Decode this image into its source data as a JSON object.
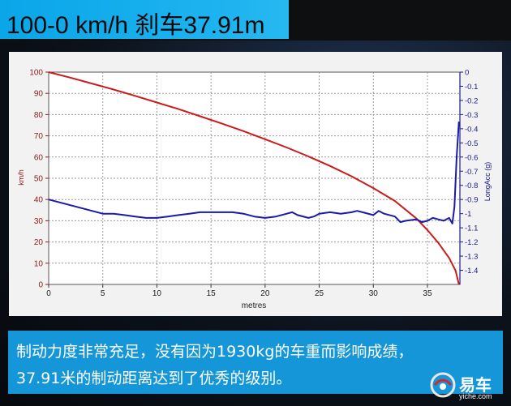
{
  "header": {
    "title": "100-0 km/h 刹车37.91m"
  },
  "caption": {
    "line1": "制动力度非常充足，没有因为1930kg的车重而影响成绩，",
    "line2": "37.91米的制动距离达到了优秀的级别。"
  },
  "logo": {
    "name": "易车",
    "url": "yiche.com"
  },
  "colors": {
    "speed_series": "#cc1a1a",
    "accel_series": "#1a1aa8",
    "header_accent": "#19aeee",
    "caption_bg": "#1596d8"
  },
  "chart_data": {
    "type": "line",
    "title": "",
    "xlabel": "metres",
    "ylabel": "km/h",
    "ylabel_right": "LongAcc (g)",
    "xlim": [
      0,
      38
    ],
    "ylim": [
      0,
      100
    ],
    "ylim_right": [
      -1.5,
      0
    ],
    "x_ticks": [
      0,
      5,
      10,
      15,
      20,
      25,
      30,
      35
    ],
    "y_ticks": [
      0,
      10,
      20,
      30,
      40,
      50,
      60,
      70,
      80,
      90,
      100
    ],
    "y_right_ticks": [
      0,
      -0.1,
      -0.2,
      -0.3,
      -0.4,
      -0.5,
      -0.6,
      -0.7,
      -0.8,
      -0.9,
      -1,
      -1.1,
      -1.2,
      -1.3,
      -1.4
    ],
    "grid": true,
    "series": [
      {
        "axis": "left",
        "x": [
          0,
          2,
          4,
          6,
          8,
          10,
          12,
          14,
          16,
          18,
          20,
          22,
          24,
          26,
          28,
          30,
          32,
          34,
          35,
          36,
          37,
          37.6,
          37.91
        ],
        "y": [
          100,
          97.4,
          94.6,
          91.8,
          88.8,
          85.7,
          82.6,
          79.2,
          75.8,
          72.2,
          68.4,
          64.5,
          60.3,
          55.8,
          50.9,
          45.4,
          39.3,
          31.0,
          25.6,
          19.6,
          12.5,
          6.5,
          0
        ]
      },
      {
        "axis": "right",
        "x": [
          0,
          1,
          2,
          3,
          4,
          5,
          6,
          7,
          8,
          9,
          10,
          11,
          12,
          13,
          14,
          15,
          16,
          17,
          18,
          19,
          20,
          21,
          22,
          22.5,
          23,
          24,
          24.5,
          25,
          26,
          27,
          28,
          28.5,
          29,
          30,
          30.5,
          31,
          32,
          32.5,
          33,
          34,
          34.5,
          35,
          35.5,
          36,
          36.5,
          37,
          37.3,
          37.5,
          37.7,
          37.91
        ],
        "y": [
          -0.9,
          -0.92,
          -0.94,
          -0.96,
          -0.98,
          -1.0,
          -1.0,
          -1.01,
          -1.02,
          -1.03,
          -1.03,
          -1.02,
          -1.01,
          -1.0,
          -0.99,
          -0.99,
          -0.99,
          -0.99,
          -1.0,
          -1.02,
          -1.03,
          -1.02,
          -1.0,
          -0.99,
          -1.01,
          -1.03,
          -1.02,
          -1.0,
          -0.99,
          -1.0,
          -0.99,
          -0.98,
          -0.99,
          -1.01,
          -0.98,
          -1.0,
          -1.02,
          -1.06,
          -1.05,
          -1.04,
          -1.06,
          -1.05,
          -1.03,
          -1.04,
          -1.05,
          -1.03,
          -1.07,
          -0.95,
          -0.6,
          -0.35
        ]
      }
    ]
  }
}
